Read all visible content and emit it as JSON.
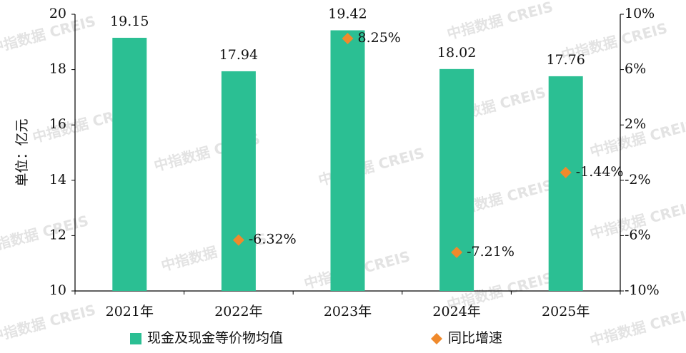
{
  "chart_data": {
    "type": "bar",
    "watermark": "中指数据 CREIS",
    "y_label": "单位：亿元",
    "categories": [
      "2021年",
      "2022年",
      "2023年",
      "2024年",
      "2025年"
    ],
    "series": [
      {
        "name": "现金及现金等价物均值",
        "type": "bar",
        "color": "#2bbf93",
        "values": [
          19.15,
          17.94,
          19.42,
          18.02,
          17.76
        ]
      },
      {
        "name": "同比增速",
        "type": "scatter",
        "axis": "y2",
        "color": "#f08a2c",
        "values": [
          null,
          -6.32,
          8.25,
          -7.21,
          -1.44
        ],
        "value_labels": [
          null,
          "-6.32%",
          "8.25%",
          "-7.21%",
          "-1.44%"
        ]
      }
    ],
    "ylim": [
      10,
      20
    ],
    "yticks": [
      10,
      12,
      14,
      16,
      18,
      20
    ],
    "y2lim": [
      -10,
      10
    ],
    "y2ticks": [
      {
        "value": -10,
        "label": "-10%"
      },
      {
        "value": -6,
        "label": "-6%"
      },
      {
        "value": -2,
        "label": "-2%"
      },
      {
        "value": 2,
        "label": "2%"
      },
      {
        "value": 6,
        "label": "6%"
      },
      {
        "value": 10,
        "label": "10%"
      }
    ],
    "legend": "bottom"
  }
}
